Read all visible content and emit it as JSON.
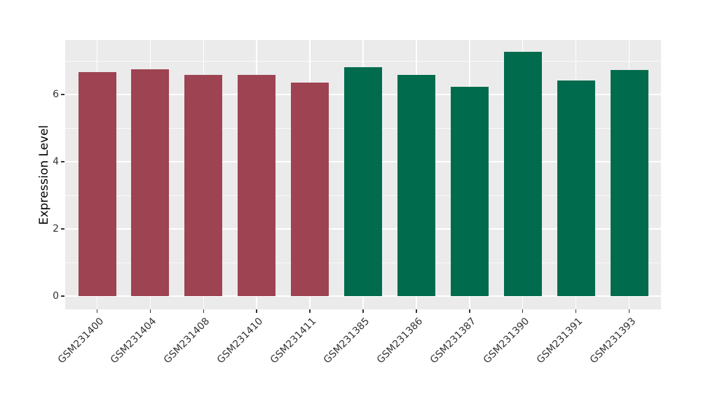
{
  "chart_data": {
    "type": "bar",
    "title": "",
    "xlabel": "",
    "ylabel": "Expression Level",
    "categories": [
      "GSM231400",
      "GSM231404",
      "GSM231408",
      "GSM231410",
      "GSM231411",
      "GSM231385",
      "GSM231386",
      "GSM231387",
      "GSM231390",
      "GSM231391",
      "GSM231393"
    ],
    "values": [
      6.66,
      6.76,
      6.59,
      6.58,
      6.36,
      6.82,
      6.59,
      6.23,
      7.27,
      6.42,
      6.73
    ],
    "bar_colors": [
      "#9E4352",
      "#9E4352",
      "#9E4352",
      "#9E4352",
      "#9E4352",
      "#006B4D",
      "#006B4D",
      "#006B4D",
      "#006B4D",
      "#006B4D",
      "#006B4D"
    ],
    "y_ticks": [
      "0",
      "2",
      "4",
      "6"
    ],
    "y_tick_values": [
      0,
      2,
      4,
      6
    ],
    "y_minor_values": [
      1,
      3,
      5,
      7
    ],
    "ylim": [
      -0.4,
      7.65
    ],
    "grid": "on",
    "legend": "none",
    "panel_bg": "#EBEBEB",
    "grid_color": "#FFFFFF",
    "tick_mark_color": "#333333",
    "axis_text_color": "#333333",
    "x_label_rotation_deg": 45
  }
}
